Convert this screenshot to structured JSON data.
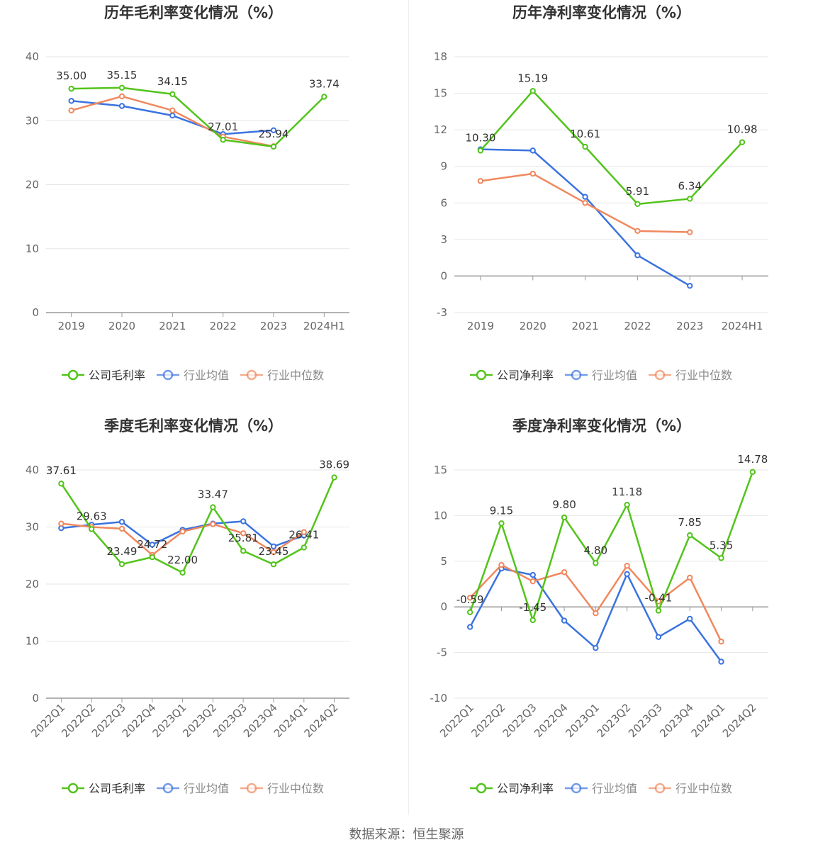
{
  "source": "数据来源：恒生聚源",
  "colors": {
    "company": "#52c41a",
    "industry_avg": "#3b73e0",
    "industry_median": "#f0885e"
  },
  "chart_data": [
    {
      "type": "line",
      "title": "历年毛利率变化情况（%）",
      "categories": [
        "2019",
        "2020",
        "2021",
        "2022",
        "2023",
        "2024H1"
      ],
      "ylim": [
        0,
        40
      ],
      "yticks": [
        0,
        10,
        20,
        30,
        40
      ],
      "legend": "bottom",
      "series": [
        {
          "name": "公司毛利率",
          "key": "company",
          "values": [
            35.0,
            35.15,
            34.15,
            27.01,
            25.94,
            33.74
          ],
          "labels": [
            "35.00",
            "35.15",
            "34.15",
            "27.01",
            "25.94",
            "33.74"
          ]
        },
        {
          "name": "行业均值",
          "key": "industry_avg",
          "values": [
            33.1,
            32.3,
            30.8,
            27.9,
            28.5,
            null
          ]
        },
        {
          "name": "行业中位数",
          "key": "industry_median",
          "values": [
            31.6,
            33.8,
            31.6,
            27.5,
            26.0,
            null
          ]
        }
      ]
    },
    {
      "type": "line",
      "title": "历年净利率变化情况（%）",
      "categories": [
        "2019",
        "2020",
        "2021",
        "2022",
        "2023",
        "2024H1"
      ],
      "ylim": [
        -3,
        18
      ],
      "yticks": [
        -3,
        0,
        3,
        6,
        9,
        12,
        15,
        18
      ],
      "legend": "bottom",
      "series": [
        {
          "name": "公司净利率",
          "key": "company",
          "values": [
            10.3,
            15.19,
            10.61,
            5.91,
            6.34,
            10.98
          ],
          "labels": [
            "10.30",
            "15.19",
            "10.61",
            "5.91",
            "6.34",
            "10.98"
          ]
        },
        {
          "name": "行业均值",
          "key": "industry_avg",
          "values": [
            10.4,
            10.3,
            6.5,
            1.7,
            -0.8,
            null
          ]
        },
        {
          "name": "行业中位数",
          "key": "industry_median",
          "values": [
            7.8,
            8.4,
            6.0,
            3.7,
            3.6,
            null
          ]
        }
      ]
    },
    {
      "type": "line",
      "title": "季度毛利率变化情况（%）",
      "categories": [
        "2022Q1",
        "2022Q2",
        "2022Q3",
        "2022Q4",
        "2023Q1",
        "2023Q2",
        "2023Q3",
        "2023Q4",
        "2024Q1",
        "2024Q2"
      ],
      "ylim": [
        0,
        40
      ],
      "yticks": [
        0,
        10,
        20,
        30,
        40
      ],
      "legend": "bottom",
      "series": [
        {
          "name": "公司毛利率",
          "key": "company",
          "values": [
            37.61,
            29.63,
            23.49,
            24.72,
            22.0,
            33.47,
            25.81,
            23.45,
            26.41,
            38.69
          ],
          "labels": [
            "37.61",
            "29.63",
            "23.49",
            "24.72",
            "22.00",
            "33.47",
            "25.81",
            "23.45",
            "26.41",
            "38.69"
          ]
        },
        {
          "name": "行业均值",
          "key": "industry_avg",
          "values": [
            29.8,
            30.4,
            30.9,
            26.9,
            29.5,
            30.6,
            31.0,
            26.6,
            28.5,
            null
          ]
        },
        {
          "name": "行业中位数",
          "key": "industry_median",
          "values": [
            30.6,
            30.0,
            29.7,
            25.1,
            29.2,
            30.5,
            28.9,
            25.6,
            29.1,
            null
          ]
        }
      ]
    },
    {
      "type": "line",
      "title": "季度净利率变化情况（%）",
      "categories": [
        "2022Q1",
        "2022Q2",
        "2022Q3",
        "2022Q4",
        "2023Q1",
        "2023Q2",
        "2023Q3",
        "2023Q4",
        "2024Q1",
        "2024Q2"
      ],
      "ylim": [
        -10,
        15
      ],
      "yticks": [
        -10,
        -5,
        0,
        5,
        10,
        15
      ],
      "legend": "bottom",
      "series": [
        {
          "name": "公司净利率",
          "key": "company",
          "values": [
            -0.59,
            9.15,
            -1.45,
            9.8,
            4.8,
            11.18,
            -0.41,
            7.85,
            5.35,
            14.78
          ],
          "labels": [
            "-0.59",
            "9.15",
            "-1.45",
            "9.80",
            "4.80",
            "11.18",
            "-0.41",
            "7.85",
            "5.35",
            "14.78"
          ]
        },
        {
          "name": "行业均值",
          "key": "industry_avg",
          "values": [
            -2.2,
            4.2,
            3.5,
            -1.5,
            -4.5,
            3.6,
            -3.3,
            -1.3,
            -6.0,
            null
          ]
        },
        {
          "name": "行业中位数",
          "key": "industry_median",
          "values": [
            1.0,
            4.6,
            2.8,
            3.8,
            -0.7,
            4.5,
            0.6,
            3.2,
            -3.8,
            null
          ]
        }
      ]
    }
  ]
}
